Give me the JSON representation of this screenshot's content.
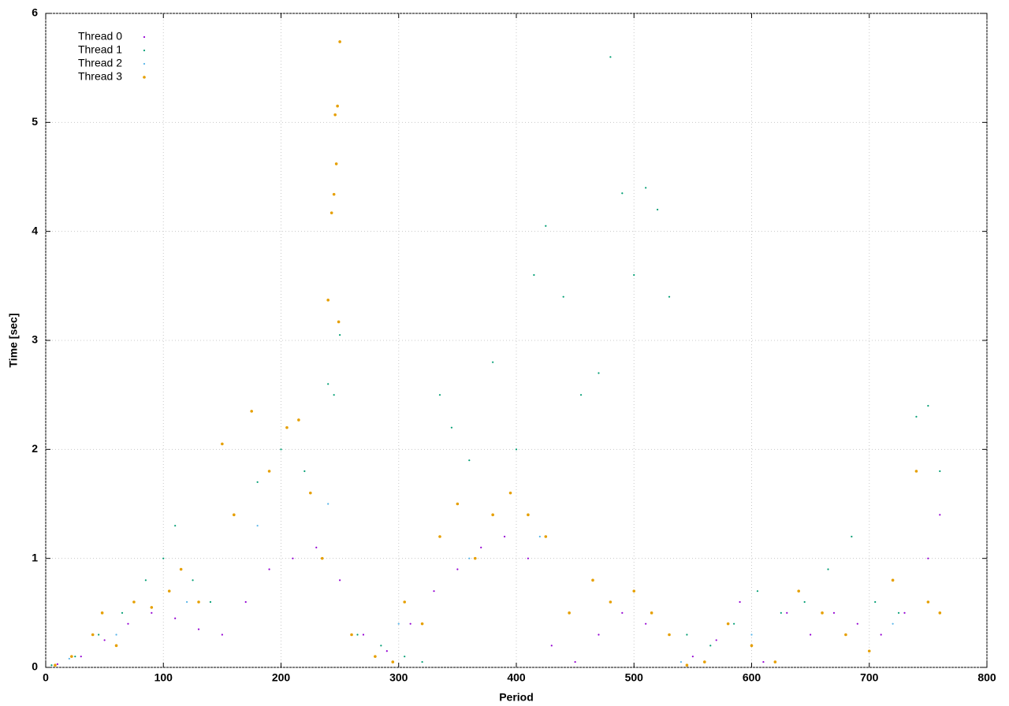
{
  "chart_data": {
    "type": "scatter",
    "xlabel": "Period",
    "ylabel": "Time [sec]",
    "xlim": [
      0,
      800
    ],
    "ylim": [
      0,
      6
    ],
    "xticks": [
      0,
      100,
      200,
      300,
      400,
      500,
      600,
      700,
      800
    ],
    "yticks": [
      0,
      1,
      2,
      3,
      4,
      5,
      6
    ],
    "grid": true,
    "legend": "upper-left",
    "series": [
      {
        "name": "Thread 0",
        "color": "#9400d3",
        "x": [
          10,
          30,
          50,
          70,
          90,
          110,
          130,
          150,
          170,
          190,
          210,
          230,
          250,
          270,
          290,
          310,
          330,
          350,
          370,
          390,
          410,
          430,
          450,
          470,
          490,
          510,
          530,
          550,
          570,
          590,
          610,
          630,
          650,
          670,
          690,
          710,
          730,
          750,
          760
        ],
        "values": [
          0.03,
          0.1,
          0.25,
          0.4,
          0.5,
          0.45,
          0.35,
          0.3,
          0.6,
          0.9,
          1.0,
          1.1,
          0.8,
          0.3,
          0.15,
          0.4,
          0.7,
          0.9,
          1.1,
          1.2,
          1.0,
          0.2,
          0.05,
          0.3,
          0.5,
          0.4,
          0.3,
          0.1,
          0.25,
          0.6,
          0.05,
          0.5,
          0.3,
          0.5,
          0.4,
          0.3,
          0.5,
          1.0,
          1.4
        ]
      },
      {
        "name": "Thread 1",
        "color": "#009e73",
        "x": [
          5,
          25,
          45,
          65,
          85,
          100,
          110,
          125,
          140,
          160,
          180,
          200,
          220,
          240,
          245,
          250,
          265,
          285,
          305,
          320,
          335,
          345,
          360,
          380,
          400,
          415,
          425,
          440,
          455,
          470,
          480,
          490,
          500,
          510,
          520,
          530,
          545,
          565,
          585,
          605,
          625,
          645,
          665,
          685,
          705,
          725,
          740,
          750,
          760
        ],
        "values": [
          0.02,
          0.1,
          0.3,
          0.5,
          0.8,
          1.0,
          1.3,
          0.8,
          0.6,
          1.4,
          1.7,
          2.0,
          1.8,
          2.6,
          2.5,
          3.05,
          0.3,
          0.2,
          0.1,
          0.05,
          2.5,
          2.2,
          1.9,
          2.8,
          2.0,
          3.6,
          4.05,
          3.4,
          2.5,
          2.7,
          5.6,
          4.35,
          3.6,
          4.4,
          4.2,
          3.4,
          0.3,
          0.2,
          0.4,
          0.7,
          0.5,
          0.6,
          0.9,
          1.2,
          0.6,
          0.5,
          2.3,
          2.4,
          1.8
        ]
      },
      {
        "name": "Thread 2",
        "color": "#56b4e9",
        "x": [
          20,
          60,
          120,
          180,
          240,
          300,
          360,
          420,
          480,
          540,
          600,
          660,
          720
        ],
        "values": [
          0.08,
          0.3,
          0.6,
          1.3,
          1.5,
          0.4,
          1.0,
          1.2,
          0.6,
          0.05,
          0.3,
          0.5,
          0.4
        ]
      },
      {
        "name": "Thread 3",
        "color": "#e69f00",
        "x": [
          8,
          22,
          40,
          48,
          60,
          75,
          90,
          105,
          115,
          130,
          150,
          160,
          175,
          190,
          205,
          215,
          225,
          235,
          240,
          243,
          245,
          246,
          247,
          248,
          249,
          250,
          260,
          280,
          295,
          305,
          320,
          335,
          350,
          365,
          380,
          395,
          410,
          425,
          445,
          465,
          480,
          500,
          515,
          530,
          545,
          560,
          580,
          600,
          620,
          640,
          660,
          680,
          700,
          720,
          740,
          750,
          760
        ],
        "values": [
          0.02,
          0.1,
          0.3,
          0.5,
          0.2,
          0.6,
          0.55,
          0.7,
          0.9,
          0.6,
          2.05,
          1.4,
          2.35,
          1.8,
          2.2,
          2.27,
          1.6,
          1.0,
          3.37,
          4.17,
          4.34,
          5.07,
          4.62,
          5.15,
          3.17,
          5.74,
          0.3,
          0.1,
          0.05,
          0.6,
          0.4,
          1.2,
          1.5,
          1.0,
          1.4,
          1.6,
          1.4,
          1.2,
          0.5,
          0.8,
          0.6,
          0.7,
          0.5,
          0.3,
          0.02,
          0.05,
          0.4,
          0.2,
          0.05,
          0.7,
          0.5,
          0.3,
          0.15,
          0.8,
          1.8,
          0.6,
          0.5
        ]
      }
    ]
  }
}
